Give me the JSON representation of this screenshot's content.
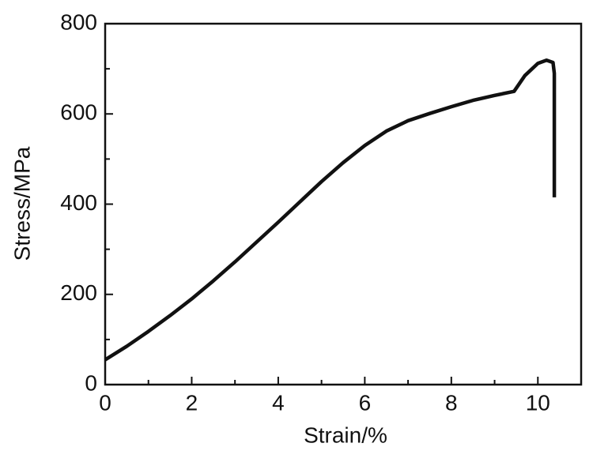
{
  "chart_data": {
    "type": "line",
    "x_label": "Strain/%",
    "y_label": "Stress/MPa",
    "x": [
      0,
      0.5,
      1,
      1.5,
      2,
      2.5,
      3,
      3.5,
      4,
      4.5,
      5,
      5.5,
      6,
      6.5,
      7,
      7.5,
      8,
      8.5,
      9,
      9.45,
      9.7,
      10,
      10.2,
      10.35,
      10.38,
      10.38
    ],
    "series": [
      {
        "color": "#111111",
        "values": [
          55,
          85,
          118,
          153,
          190,
          230,
          272,
          316,
          360,
          405,
          450,
          492,
          530,
          562,
          585,
          601,
          616,
          630,
          641,
          650,
          685,
          712,
          719,
          714,
          690,
          415
        ]
      }
    ],
    "xlim": [
      0,
      11
    ],
    "ylim": [
      0,
      800
    ],
    "xticks": [
      0,
      2,
      4,
      6,
      8,
      10
    ],
    "yticks": [
      0,
      200,
      400,
      600,
      800
    ],
    "xminorticks": [
      1,
      3,
      5,
      7,
      9
    ],
    "yminorticks": [
      100,
      300,
      500,
      700
    ]
  }
}
